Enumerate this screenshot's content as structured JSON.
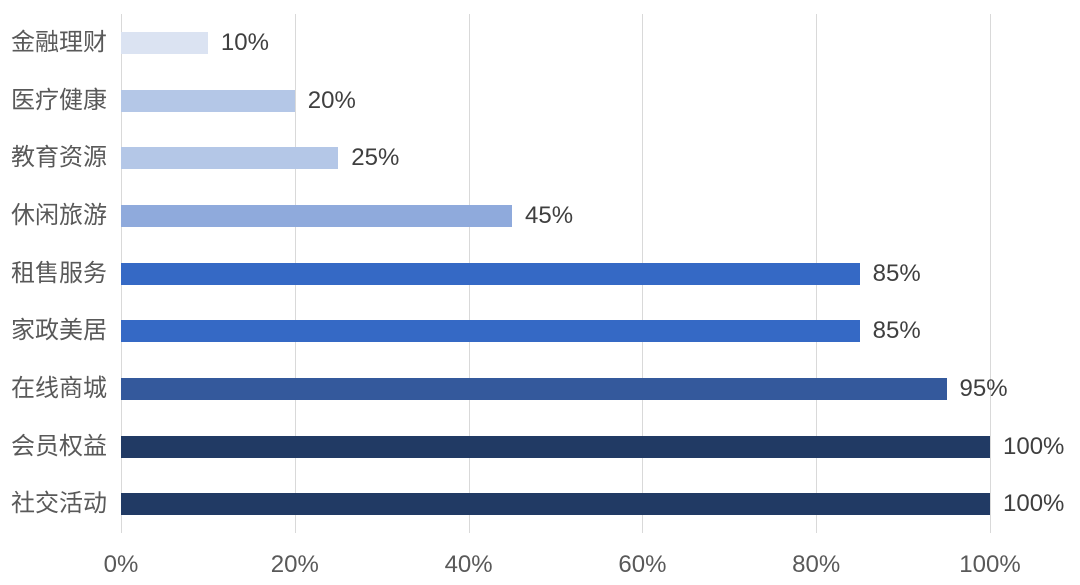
{
  "chart_data": {
    "type": "bar",
    "orientation": "horizontal",
    "title": "",
    "xlabel": "",
    "ylabel": "",
    "categories": [
      "金融理财",
      "医疗健康",
      "教育资源",
      "休闲旅游",
      "租售服务",
      "家政美居",
      "在线商城",
      "会员权益",
      "社交活动"
    ],
    "values": [
      10,
      20,
      25,
      45,
      85,
      85,
      95,
      100,
      100
    ],
    "value_labels": [
      "10%",
      "20%",
      "25%",
      "45%",
      "85%",
      "85%",
      "95%",
      "100%",
      "100%"
    ],
    "bar_colors": [
      "#dbe3f2",
      "#b4c7e7",
      "#b4c7e7",
      "#8faadc",
      "#3569c5",
      "#3569c5",
      "#34599c",
      "#213a64",
      "#213a64"
    ],
    "x_ticks": [
      "0%",
      "20%",
      "40%",
      "60%",
      "80%",
      "100%"
    ],
    "x_tick_values": [
      0,
      20,
      40,
      60,
      80,
      100
    ],
    "xlim": [
      0,
      100
    ],
    "grid": "vertical",
    "legend": "none",
    "colors": {
      "gridline": "#d9d9d9",
      "category_label": "#595959",
      "value_label": "#3f3f3f",
      "axis_label": "#595959",
      "background": "#ffffff"
    }
  }
}
